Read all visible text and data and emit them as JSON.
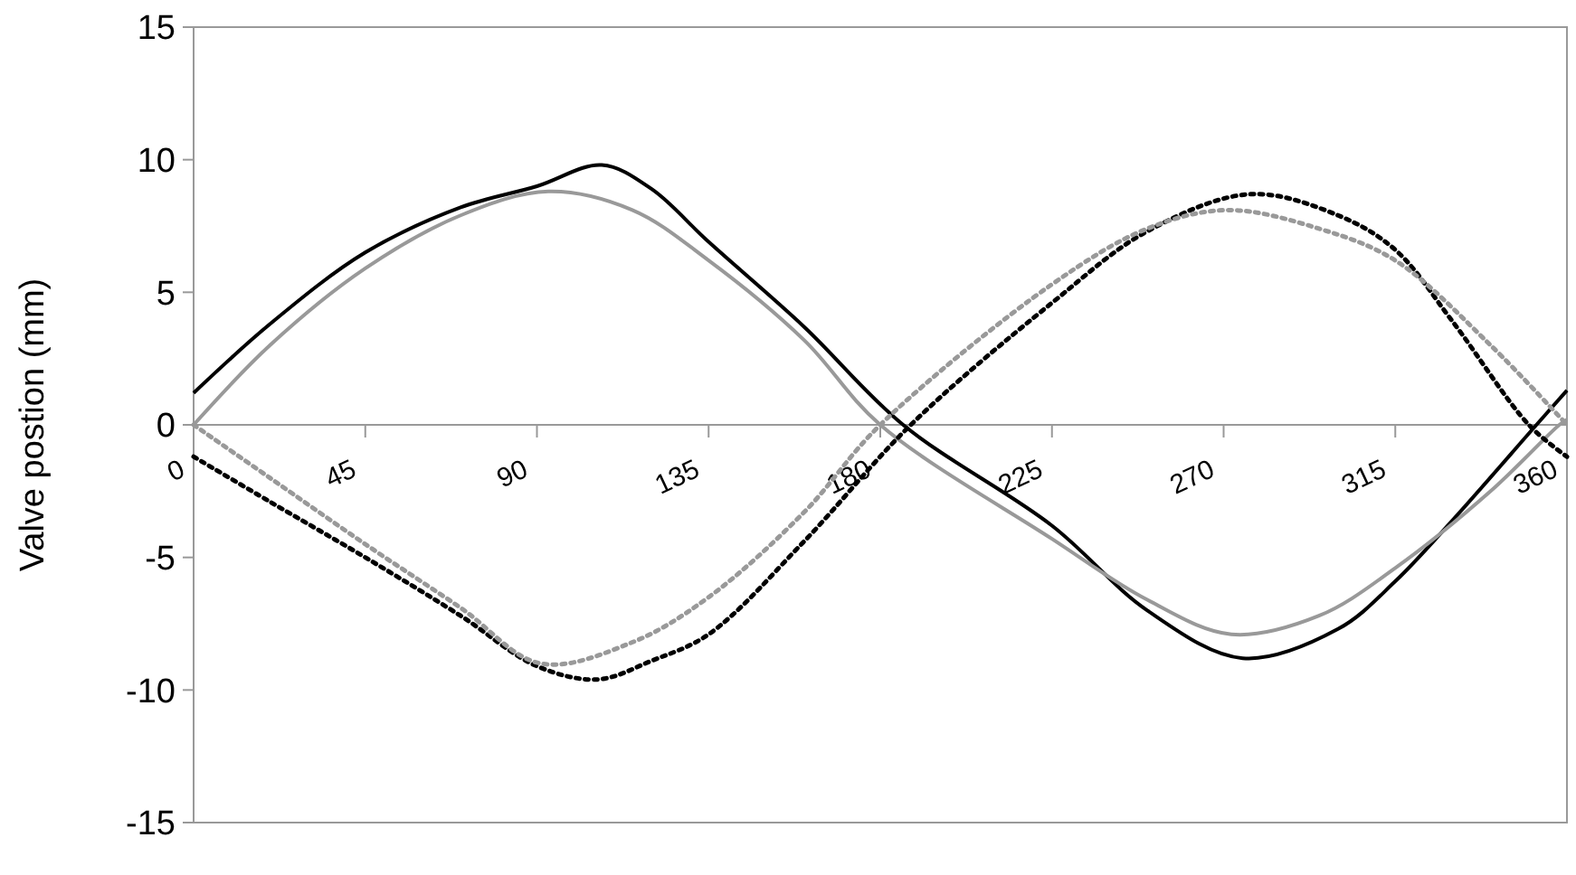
{
  "chart_data": {
    "type": "line",
    "ylabel": "Valve postion (mm)",
    "xlim": [
      0,
      360
    ],
    "xticks": [
      0,
      45,
      90,
      135,
      180,
      225,
      270,
      315,
      360
    ],
    "ylim": [
      -15,
      15
    ],
    "yticks": [
      -15,
      -10,
      -5,
      0,
      5,
      10,
      15
    ],
    "marker": "none",
    "series": [
      {
        "color": "#000000",
        "line_style": "solid",
        "x": [
          0,
          20,
          45,
          70,
          90,
          107,
          120,
          135,
          160,
          186,
          225,
          250,
          275,
          300,
          315,
          330,
          352,
          360
        ],
        "values": [
          1.2,
          3.8,
          6.5,
          8.2,
          9.0,
          9.8,
          8.9,
          6.9,
          3.7,
          0,
          -3.8,
          -7.0,
          -8.8,
          -7.7,
          -5.9,
          -3.6,
          0,
          1.3
        ]
      },
      {
        "color": "#999999",
        "line_style": "solid",
        "x": [
          0,
          20,
          45,
          70,
          93,
          115,
          135,
          160,
          180,
          225,
          250,
          272,
          295,
          315,
          340,
          358,
          360
        ],
        "values": [
          0,
          3.0,
          5.9,
          7.9,
          8.8,
          8.1,
          6.2,
          3.2,
          0,
          -4.3,
          -6.6,
          -7.9,
          -7.2,
          -5.4,
          -2.5,
          0,
          0.2
        ]
      },
      {
        "color": "#000000",
        "line_style": "dotted",
        "x": [
          0,
          20,
          45,
          70,
          90,
          106,
          120,
          135,
          160,
          188,
          225,
          250,
          277,
          300,
          315,
          330,
          350,
          360
        ],
        "values": [
          -1.2,
          -2.9,
          -5.0,
          -7.2,
          -9.1,
          -9.6,
          -8.9,
          -7.9,
          -4.4,
          0,
          4.6,
          7.3,
          8.7,
          7.9,
          6.6,
          3.9,
          0,
          -1.2
        ]
      },
      {
        "color": "#999999",
        "line_style": "dotted",
        "x": [
          0,
          20,
          45,
          70,
          91,
          115,
          135,
          160,
          180,
          225,
          250,
          271,
          295,
          315,
          340,
          360
        ],
        "values": [
          0,
          -2.0,
          -4.5,
          -6.9,
          -9.0,
          -8.2,
          -6.5,
          -3.3,
          0,
          5.3,
          7.4,
          8.1,
          7.4,
          6.2,
          3.0,
          0
        ]
      }
    ]
  }
}
